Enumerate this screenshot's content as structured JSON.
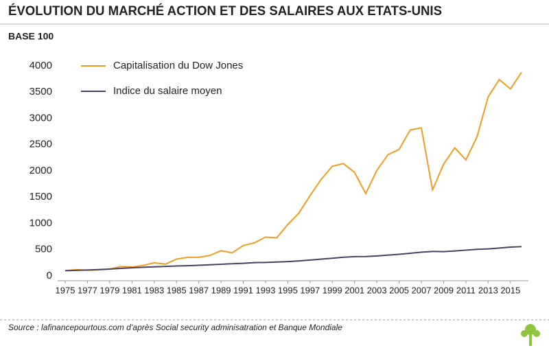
{
  "chart_data": {
    "type": "line",
    "title": "ÉVOLUTION DU MARCHÉ ACTION ET DES SALAIRES AUX ETATS-UNIS",
    "subtitle": "BASE 100",
    "source": "Source : lafinancepourtous.com d’après Social security adminisatration et Banque Mondiale",
    "x": [
      1975,
      1976,
      1977,
      1978,
      1979,
      1980,
      1981,
      1982,
      1983,
      1984,
      1985,
      1986,
      1987,
      1988,
      1989,
      1990,
      1991,
      1992,
      1993,
      1994,
      1995,
      1996,
      1997,
      1998,
      1999,
      2000,
      2001,
      2002,
      2003,
      2004,
      2005,
      2006,
      2007,
      2008,
      2009,
      2010,
      2011,
      2012,
      2013,
      2014,
      2015,
      2016
    ],
    "series": [
      {
        "name": "Capitalisation du Dow Jones",
        "color": "#f39c1f",
        "values": [
          100,
          120,
          110,
          115,
          130,
          180,
          170,
          200,
          250,
          225,
          320,
          355,
          355,
          390,
          480,
          440,
          580,
          630,
          740,
          725,
          980,
          1200,
          1530,
          1840,
          2090,
          2140,
          1970,
          1570,
          2010,
          2310,
          2410,
          2780,
          2820,
          1640,
          2130,
          2440,
          2210,
          2650,
          3410,
          3740,
          3560,
          3880
        ]
      },
      {
        "name": "Indice du salaire moyen",
        "color": "#4b3f63",
        "values": [
          100,
          107,
          113,
          121,
          131,
          143,
          156,
          165,
          173,
          182,
          189,
          195,
          203,
          213,
          222,
          232,
          241,
          253,
          257,
          264,
          273,
          286,
          303,
          320,
          337,
          356,
          367,
          370,
          380,
          397,
          412,
          432,
          452,
          466,
          463,
          476,
          491,
          506,
          515,
          531,
          549,
          558
        ]
      }
    ],
    "xlim": [
      1975,
      2016
    ],
    "xticks": [
      1975,
      1977,
      1979,
      1981,
      1983,
      1985,
      1987,
      1989,
      1991,
      1993,
      1995,
      1997,
      1999,
      2001,
      2003,
      2005,
      2007,
      2009,
      2011,
      2013,
      2015
    ],
    "ylim": [
      0,
      4000
    ],
    "yticks": [
      0,
      500,
      1000,
      1500,
      2000,
      2500,
      3000,
      3500,
      4000
    ],
    "grid": false,
    "legend": "top-left"
  }
}
